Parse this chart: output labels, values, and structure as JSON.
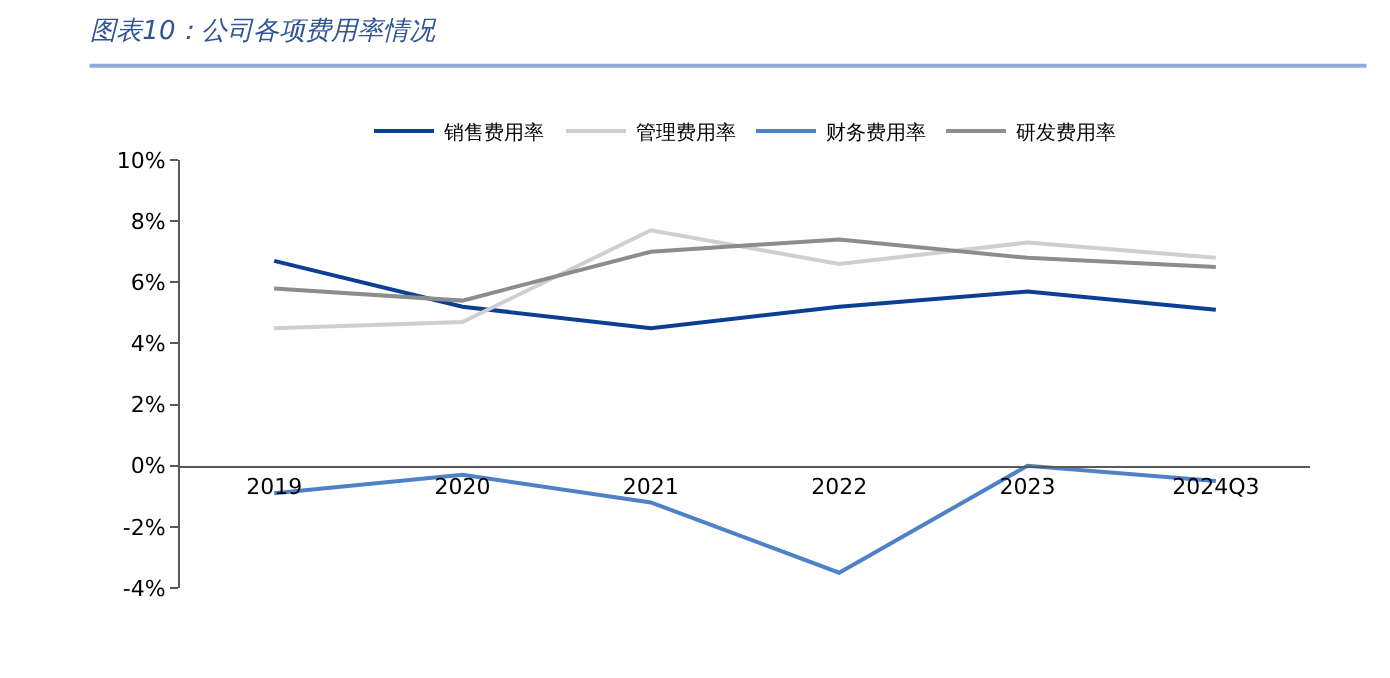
{
  "chart_data": {
    "type": "line",
    "title": "图表10：公司各项费用率情况",
    "categories": [
      "2019",
      "2020",
      "2021",
      "2022",
      "2023",
      "2024Q3"
    ],
    "series": [
      {
        "name": "销售费用率",
        "color": "#0b3f94",
        "values": [
          6.7,
          5.2,
          4.5,
          5.2,
          5.7,
          5.1
        ]
      },
      {
        "name": "管理费用率",
        "color": "#cfcfcf",
        "values": [
          4.5,
          4.7,
          7.7,
          6.6,
          7.3,
          6.8
        ]
      },
      {
        "name": "财务费用率",
        "color": "#4f81c7",
        "values": [
          -0.9,
          -0.3,
          -1.2,
          -3.5,
          0.0,
          -0.5
        ]
      },
      {
        "name": "研发费用率",
        "color": "#8c8c8c",
        "values": [
          5.8,
          5.4,
          7.0,
          7.4,
          6.8,
          6.5
        ]
      }
    ],
    "ylim": [
      -4,
      10
    ],
    "yticks": [
      {
        "value": -4,
        "label": "-4%"
      },
      {
        "value": -2,
        "label": "-2%"
      },
      {
        "value": 0,
        "label": "0%"
      },
      {
        "value": 2,
        "label": "2%"
      },
      {
        "value": 4,
        "label": "4%"
      },
      {
        "value": 6,
        "label": "6%"
      },
      {
        "value": 8,
        "label": "8%"
      },
      {
        "value": 10,
        "label": "10%"
      }
    ],
    "grid": false,
    "legend": "top",
    "marker": "none",
    "line_style": "solid"
  }
}
